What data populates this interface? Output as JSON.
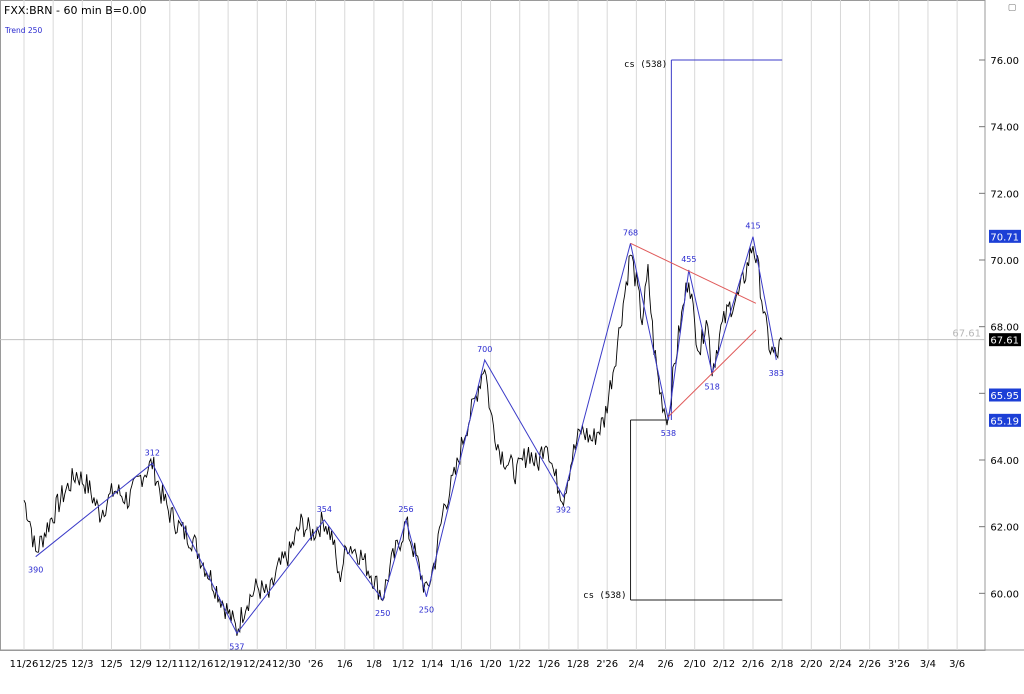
{
  "header": {
    "symbol_line": "FXX:BRN - 60 min  B=0.00",
    "study_label": "Trend 250"
  },
  "colors": {
    "grid": "#d8d8d8",
    "price": "#000000",
    "zigzag": "#3b3bc8",
    "wedge": "#e05a5a",
    "cs_box": "#222222",
    "cs_box_blue": "#3b3bc8",
    "label_blue": "#2a2ad0",
    "tag_blue": "#1c3fd6",
    "tag_black": "#000000",
    "tag_text": "#ffffff",
    "last_price_line": "#c0c0c0"
  },
  "chart_data": {
    "type": "line",
    "title": "FXX:BRN - 60 min  B=0.00",
    "x_tick_labels": [
      "11/26",
      "12/25",
      "12/3",
      "12/5",
      "12/9",
      "12/11",
      "12/16",
      "12/19",
      "12/24",
      "12/30",
      "'26",
      "1/6",
      "1/8",
      "1/12",
      "1/14",
      "1/16",
      "1/20",
      "1/22",
      "1/26",
      "1/28",
      "2'26",
      "2/4",
      "2/6",
      "2/10",
      "2/12",
      "2/16",
      "2/18",
      "2/20",
      "2/24",
      "2/26",
      "3'26",
      "3/4",
      "3/6"
    ],
    "x_range": [
      0,
      32
    ],
    "y_tick_labels": [
      "60.00",
      "62.00",
      "64.00",
      "66.00",
      "68.00",
      "70.00",
      "72.00",
      "74.00",
      "76.00"
    ],
    "y_range": [
      58.3,
      77.8
    ],
    "grid": true,
    "last_price": 67.61,
    "last_price_ghost_label": "67.61",
    "price_tags": [
      {
        "value": 70.71,
        "label": "70.71",
        "style": "blue"
      },
      {
        "value": 67.61,
        "label": "67.61",
        "style": "black"
      },
      {
        "value": 65.95,
        "label": "65.95",
        "style": "blue"
      },
      {
        "value": 65.19,
        "label": "65.19",
        "style": "blue"
      }
    ],
    "zigzag": [
      {
        "x": 0.4,
        "y": 61.1,
        "label": "390",
        "pos": "below"
      },
      {
        "x": 4.4,
        "y": 63.9,
        "label": "312",
        "pos": "above"
      },
      {
        "x": 7.3,
        "y": 58.8,
        "label": "537",
        "pos": "below"
      },
      {
        "x": 10.3,
        "y": 62.2,
        "label": "354",
        "pos": "above"
      },
      {
        "x": 12.3,
        "y": 59.8,
        "label": "250",
        "pos": "below"
      },
      {
        "x": 13.1,
        "y": 62.2,
        "label": "256",
        "pos": "above"
      },
      {
        "x": 13.8,
        "y": 59.9,
        "label": "250",
        "pos": "below"
      },
      {
        "x": 15.8,
        "y": 67.0,
        "label": "700",
        "pos": "above"
      },
      {
        "x": 18.5,
        "y": 62.9,
        "label": "392",
        "pos": "below"
      },
      {
        "x": 20.8,
        "y": 70.5,
        "label": "768",
        "pos": "above"
      },
      {
        "x": 22.1,
        "y": 65.2,
        "label": "538",
        "pos": "below"
      },
      {
        "x": 22.8,
        "y": 69.7,
        "label": "455",
        "pos": "above"
      },
      {
        "x": 23.6,
        "y": 66.6,
        "label": "518",
        "pos": "below"
      },
      {
        "x": 25.0,
        "y": 70.7,
        "label": "415",
        "pos": "above"
      },
      {
        "x": 25.8,
        "y": 67.0,
        "label": "383",
        "pos": "below"
      }
    ],
    "wedge_lines": [
      {
        "x1": 20.8,
        "y1": 70.5,
        "x2": 25.1,
        "y2": 68.7
      },
      {
        "x1": 22.1,
        "y1": 65.3,
        "x2": 25.1,
        "y2": 67.9
      }
    ],
    "cs_boxes": [
      {
        "label": "cs (538)",
        "x1": 20.8,
        "x2": 22.2,
        "x_right": 26.0,
        "y_label": 75.8,
        "y_bottom": 76.0,
        "line": "top",
        "style": "blue"
      },
      {
        "label": "cs (538)",
        "x1": 20.8,
        "x2": 20.8,
        "x_right": 26.0,
        "y_label": 60.0,
        "y_bottom": 59.8,
        "line": "bottom",
        "style": "black"
      }
    ],
    "price_anchors": [
      [
        0.0,
        62.8
      ],
      [
        0.2,
        62.2
      ],
      [
        0.4,
        61.2
      ],
      [
        0.8,
        62.0
      ],
      [
        1.3,
        62.9
      ],
      [
        1.8,
        63.6
      ],
      [
        2.2,
        63.2
      ],
      [
        2.6,
        62.4
      ],
      [
        3.1,
        63.1
      ],
      [
        3.6,
        62.8
      ],
      [
        4.0,
        63.5
      ],
      [
        4.4,
        63.9
      ],
      [
        4.7,
        63.0
      ],
      [
        5.0,
        62.4
      ],
      [
        5.4,
        61.9
      ],
      [
        5.8,
        61.6
      ],
      [
        6.1,
        61.0
      ],
      [
        6.5,
        60.3
      ],
      [
        6.9,
        59.6
      ],
      [
        7.3,
        58.9
      ],
      [
        7.6,
        59.7
      ],
      [
        8.0,
        60.2
      ],
      [
        8.4,
        59.9
      ],
      [
        8.7,
        60.7
      ],
      [
        9.1,
        61.2
      ],
      [
        9.5,
        62.1
      ],
      [
        9.9,
        61.8
      ],
      [
        10.3,
        62.2
      ],
      [
        10.6,
        61.6
      ],
      [
        10.8,
        60.4
      ],
      [
        11.1,
        61.5
      ],
      [
        11.5,
        61.2
      ],
      [
        11.9,
        60.6
      ],
      [
        12.3,
        59.9
      ],
      [
        12.6,
        60.9
      ],
      [
        12.9,
        61.6
      ],
      [
        13.1,
        62.1
      ],
      [
        13.4,
        61.2
      ],
      [
        13.8,
        60.0
      ],
      [
        14.1,
        61.0
      ],
      [
        14.4,
        62.6
      ],
      [
        14.8,
        63.6
      ],
      [
        15.1,
        64.8
      ],
      [
        15.4,
        65.6
      ],
      [
        15.8,
        66.9
      ],
      [
        16.0,
        65.4
      ],
      [
        16.3,
        64.3
      ],
      [
        16.6,
        63.9
      ],
      [
        16.9,
        63.6
      ],
      [
        17.3,
        64.3
      ],
      [
        17.6,
        63.8
      ],
      [
        17.9,
        64.7
      ],
      [
        18.2,
        63.5
      ],
      [
        18.5,
        62.9
      ],
      [
        18.8,
        64.1
      ],
      [
        19.1,
        64.9
      ],
      [
        19.5,
        64.6
      ],
      [
        19.9,
        65.2
      ],
      [
        20.3,
        67.2
      ],
      [
        20.6,
        69.0
      ],
      [
        20.8,
        70.2
      ],
      [
        21.0,
        69.3
      ],
      [
        21.2,
        68.2
      ],
      [
        21.4,
        69.6
      ],
      [
        21.6,
        67.4
      ],
      [
        21.8,
        66.1
      ],
      [
        22.0,
        65.4
      ],
      [
        22.1,
        65.3
      ],
      [
        22.3,
        66.8
      ],
      [
        22.5,
        68.0
      ],
      [
        22.8,
        69.6
      ],
      [
        23.0,
        68.0
      ],
      [
        23.2,
        67.3
      ],
      [
        23.4,
        68.4
      ],
      [
        23.6,
        66.7
      ],
      [
        23.9,
        67.9
      ],
      [
        24.2,
        68.6
      ],
      [
        24.5,
        68.9
      ],
      [
        24.8,
        69.8
      ],
      [
        25.0,
        70.5
      ],
      [
        25.2,
        69.6
      ],
      [
        25.4,
        68.2
      ],
      [
        25.6,
        67.3
      ],
      [
        25.8,
        67.1
      ],
      [
        26.0,
        67.6
      ]
    ]
  }
}
